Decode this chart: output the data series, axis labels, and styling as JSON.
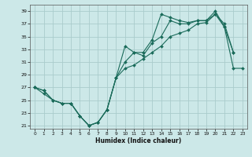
{
  "xlabel": "Humidex (Indice chaleur)",
  "bg_color": "#cce8e8",
  "grid_color": "#aacccc",
  "line_color": "#1a6b5a",
  "xlim": [
    -0.5,
    23.5
  ],
  "ylim": [
    20.5,
    40.0
  ],
  "xticks": [
    0,
    1,
    2,
    3,
    4,
    5,
    6,
    7,
    8,
    9,
    10,
    11,
    12,
    13,
    14,
    15,
    16,
    17,
    18,
    19,
    20,
    21,
    22,
    23
  ],
  "yticks": [
    21,
    23,
    25,
    27,
    29,
    31,
    33,
    35,
    37,
    39
  ],
  "line_upper": [
    27.0,
    26.5,
    25.0,
    24.5,
    24.5,
    22.5,
    21.0,
    21.5,
    23.5,
    28.5,
    33.5,
    32.5,
    32.5,
    34.5,
    38.5,
    38.0,
    37.5,
    37.2,
    37.5,
    37.5,
    39.0,
    36.5,
    32.5,
    null
  ],
  "line_mid": [
    27.0,
    26.5,
    25.0,
    24.5,
    24.5,
    22.5,
    21.0,
    21.5,
    23.5,
    28.5,
    31.0,
    32.5,
    32.0,
    34.0,
    35.0,
    37.5,
    37.0,
    37.0,
    37.5,
    37.5,
    38.5,
    37.0,
    32.5,
    null
  ],
  "line_lower": [
    27.0,
    26.0,
    25.0,
    24.5,
    24.5,
    22.5,
    21.0,
    21.5,
    23.5,
    28.5,
    30.0,
    30.5,
    31.5,
    32.5,
    33.5,
    35.0,
    35.5,
    36.0,
    37.0,
    37.2,
    38.5,
    36.5,
    30.0,
    30.0
  ]
}
